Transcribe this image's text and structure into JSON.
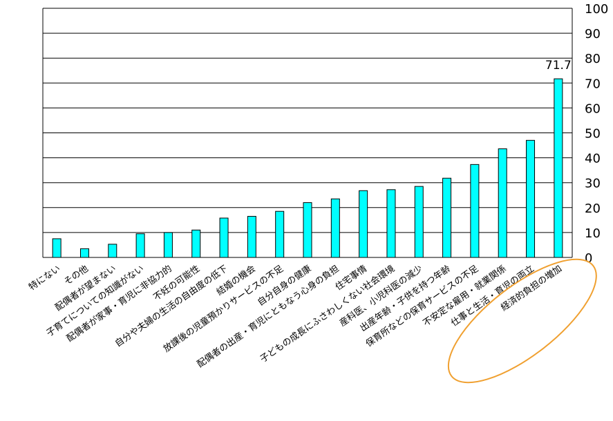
{
  "chart_data": {
    "type": "bar",
    "categories": [
      "特にない",
      "その他",
      "配偶者が望まない",
      "子育てについての知識がない",
      "配偶者が家事・育児に非協力的",
      "不妊の可能性",
      "自分や夫婦の生活の自由度の低下",
      "結婚の機会",
      "放課後の児童預かりサービスの不足",
      "自分自身の健康",
      "配偶者の出産・育児にともなう心身の負担",
      "住宅事情",
      "子どもの成長にふさわしくない社会環境",
      "産科医、小児科医の減少",
      "出産年齢・子供を持つ年齢",
      "保育所などの保育サービスの不足",
      "不安定な雇用・就業関係",
      "仕事と生活・育児の両立",
      "経済的負担の増加"
    ],
    "values": [
      7.5,
      3.5,
      5.3,
      9.5,
      10.0,
      11.0,
      15.8,
      16.5,
      18.5,
      22.0,
      23.5,
      26.8,
      27.2,
      28.5,
      31.8,
      37.3,
      43.6,
      47.0,
      71.7
    ],
    "data_labels": [
      {
        "index": 18,
        "text": "71.7"
      }
    ],
    "ylim": [
      0,
      100
    ],
    "yticks": [
      "0",
      "10",
      "20",
      "30",
      "40",
      "50",
      "60",
      "70",
      "80",
      "90",
      "100"
    ],
    "y_axis_side": "right",
    "grid": true,
    "bar_color": "#00ffff",
    "bar_edge_color": "#000000",
    "highlight": {
      "shape": "ellipse",
      "color": "#f0a030",
      "around": "経済的負担の増加"
    }
  }
}
